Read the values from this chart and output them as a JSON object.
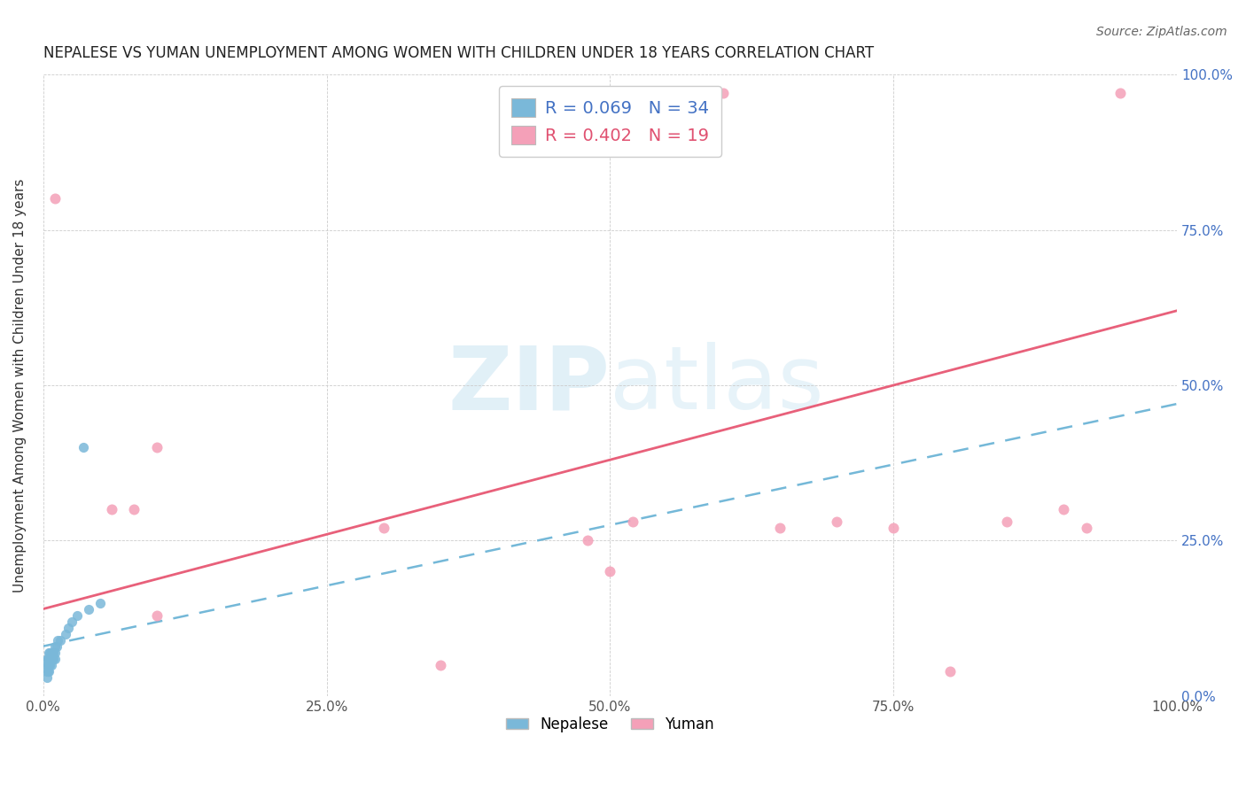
{
  "title": "NEPALESE VS YUMAN UNEMPLOYMENT AMONG WOMEN WITH CHILDREN UNDER 18 YEARS CORRELATION CHART",
  "source": "Source: ZipAtlas.com",
  "ylabel": "Unemployment Among Women with Children Under 18 years",
  "nepalese_R": "R = 0.069",
  "nepalese_N": "N = 34",
  "yuman_R": "R = 0.402",
  "yuman_N": "N = 19",
  "nepalese_color": "#7ab8d9",
  "yuman_color": "#f4a0b8",
  "nepalese_line_color": "#74b8d8",
  "yuman_line_color": "#e8607a",
  "nepalese_r_color": "#4472c4",
  "yuman_r_color": "#e05070",
  "watermark_text": "ZIPatlas",
  "watermark_color": "#d5eaf5",
  "xlim": [
    0.0,
    1.0
  ],
  "ylim": [
    0.0,
    1.0
  ],
  "nepalese_x": [
    0.003,
    0.003,
    0.003,
    0.003,
    0.004,
    0.004,
    0.004,
    0.005,
    0.005,
    0.005,
    0.005,
    0.006,
    0.006,
    0.006,
    0.007,
    0.007,
    0.007,
    0.008,
    0.008,
    0.009,
    0.009,
    0.01,
    0.01,
    0.01,
    0.012,
    0.013,
    0.015,
    0.02,
    0.022,
    0.025,
    0.03,
    0.035,
    0.04,
    0.05
  ],
  "nepalese_y": [
    0.03,
    0.04,
    0.05,
    0.06,
    0.04,
    0.05,
    0.06,
    0.04,
    0.05,
    0.06,
    0.07,
    0.05,
    0.06,
    0.07,
    0.05,
    0.06,
    0.07,
    0.06,
    0.07,
    0.06,
    0.07,
    0.06,
    0.07,
    0.08,
    0.08,
    0.09,
    0.09,
    0.1,
    0.11,
    0.12,
    0.13,
    0.4,
    0.14,
    0.15
  ],
  "yuman_x": [
    0.01,
    0.06,
    0.08,
    0.1,
    0.1,
    0.3,
    0.35,
    0.48,
    0.5,
    0.52,
    0.6,
    0.65,
    0.7,
    0.75,
    0.8,
    0.85,
    0.9,
    0.92,
    0.95
  ],
  "yuman_y": [
    0.8,
    0.3,
    0.3,
    0.13,
    0.4,
    0.27,
    0.05,
    0.25,
    0.2,
    0.28,
    0.97,
    0.27,
    0.28,
    0.27,
    0.04,
    0.28,
    0.3,
    0.27,
    0.97
  ],
  "nepalese_line_x0": 0.0,
  "nepalese_line_x1": 1.0,
  "nepalese_line_y0": 0.08,
  "nepalese_line_y1": 0.47,
  "yuman_line_x0": 0.0,
  "yuman_line_x1": 1.0,
  "yuman_line_y0": 0.14,
  "yuman_line_y1": 0.62
}
